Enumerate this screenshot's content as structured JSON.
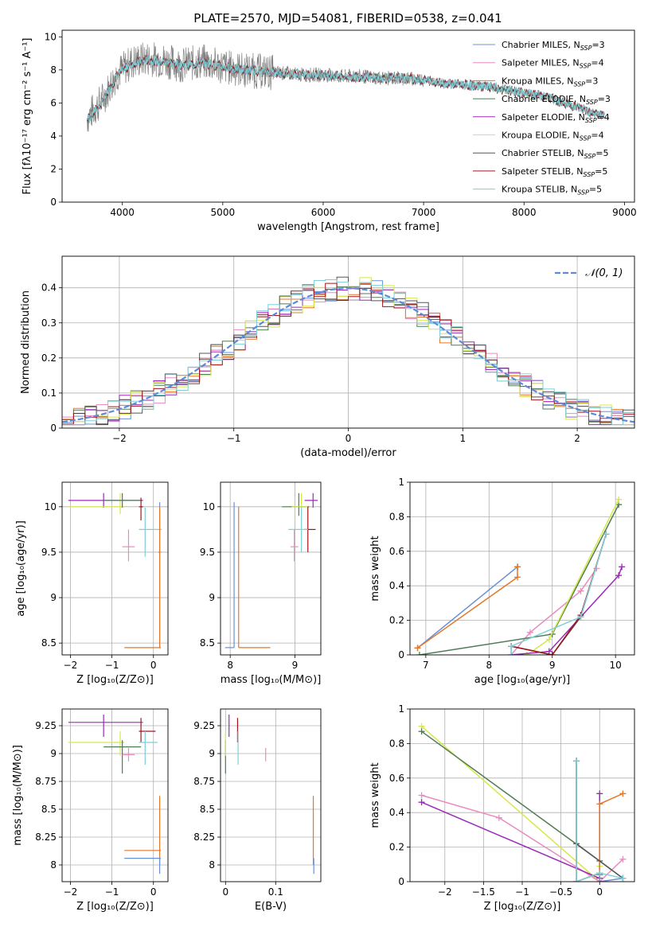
{
  "title": "PLATE=2570, MJD=54081, FIBERID=0538, z=0.041",
  "colors": {
    "Chabrier MILES": "#6a8fd8",
    "Salpeter MILES": "#e88bc0",
    "Kroupa MILES": "#e3772a",
    "Chabrier ELODIE": "#4e7d55",
    "Salpeter ELODIE": "#9b2ab8",
    "Kroupa ELODIE": "#d6e84a",
    "Chabrier STELIB": "#555555",
    "Salpeter STELIB": "#a3141e",
    "Kroupa STELIB": "#7fcfd6",
    "data": "#808080",
    "normal": "#5b8bd8"
  },
  "legend_spectrum": [
    {
      "name": "Chabrier MILES",
      "label": "Chabrier MILES, N",
      "sub": "SSP",
      "tail": "=3"
    },
    {
      "name": "Salpeter MILES",
      "label": "Salpeter MILES, N",
      "sub": "SSP",
      "tail": "=4"
    },
    {
      "name": "Kroupa MILES",
      "label": "Kroupa MILES, N",
      "sub": "SSP",
      "tail": "=3"
    },
    {
      "name": "Chabrier ELODIE",
      "label": "Chabrier ELODIE, N",
      "sub": "SSP",
      "tail": "=3"
    },
    {
      "name": "Salpeter ELODIE",
      "label": "Salpeter ELODIE, N",
      "sub": "SSP",
      "tail": "=4"
    },
    {
      "name": "Kroupa ELODIE",
      "label": "Kroupa ELODIE, N",
      "sub": "SSP",
      "tail": "=4"
    },
    {
      "name": "Chabrier STELIB",
      "label": "Chabrier STELIB, N",
      "sub": "SSP",
      "tail": "=5"
    },
    {
      "name": "Salpeter STELIB",
      "label": "Salpeter STELIB, N",
      "sub": "SSP",
      "tail": "=5"
    },
    {
      "name": "Kroupa STELIB",
      "label": "Kroupa STELIB, N",
      "sub": "SSP",
      "tail": "=5"
    }
  ],
  "chart_data": [
    {
      "type": "line",
      "id": "spectrum",
      "xlabel": "wavelength [Angstrom, rest frame]",
      "ylabel": "Flux [fλ10⁻¹⁷ erg cm⁻² s⁻¹ A⁻¹]",
      "xlim": [
        3400,
        9100
      ],
      "ylim": [
        0,
        10.4
      ],
      "xticks": [
        4000,
        5000,
        6000,
        7000,
        8000,
        9000
      ],
      "yticks": [
        0,
        2,
        4,
        6,
        8,
        10
      ],
      "grid": false,
      "legend": "upper right",
      "series": [
        {
          "name": "data",
          "x": [
            3650,
            3800,
            3950,
            4100,
            4250,
            4400,
            4600,
            4800,
            5000,
            5200,
            5400,
            5600,
            5800,
            6000,
            6200,
            6400,
            6600,
            6800,
            7000,
            7200,
            7400,
            7600,
            7800,
            8000,
            8200,
            8400,
            8600,
            8800
          ],
          "y": [
            5.1,
            6.2,
            7.8,
            8.5,
            8.7,
            8.6,
            8.3,
            8.5,
            8.2,
            8.0,
            7.9,
            7.8,
            7.7,
            7.7,
            7.6,
            7.6,
            7.5,
            7.5,
            7.4,
            7.2,
            7.1,
            7.0,
            6.8,
            6.6,
            6.4,
            6.0,
            5.6,
            5.2
          ]
        },
        {
          "name": "model",
          "x": [
            3650,
            3800,
            3950,
            4100,
            4250,
            4400,
            4600,
            4800,
            5000,
            5200,
            5400,
            5600,
            5800,
            6000,
            6200,
            6400,
            6600,
            6800,
            7000,
            7200,
            7400,
            7600,
            7800,
            8000,
            8200,
            8400,
            8600,
            8800
          ],
          "y": [
            5.0,
            6.0,
            7.7,
            8.4,
            8.6,
            8.5,
            8.3,
            8.4,
            8.2,
            8.0,
            7.9,
            7.8,
            7.7,
            7.7,
            7.6,
            7.6,
            7.5,
            7.5,
            7.4,
            7.2,
            7.1,
            7.0,
            6.8,
            6.6,
            6.4,
            6.0,
            5.6,
            5.2
          ]
        }
      ]
    },
    {
      "type": "histogram",
      "id": "residuals",
      "xlabel": "(data-model)/error",
      "ylabel": "Normed distribution",
      "xlim": [
        -2.5,
        2.5
      ],
      "ylim": [
        0,
        0.49
      ],
      "xticks": [
        -2,
        -1,
        0,
        1,
        2
      ],
      "yticks": [
        0.0,
        0.1,
        0.2,
        0.3,
        0.4
      ],
      "grid": true,
      "legend": "upper right",
      "legend_label": "𝒩(0, 1)",
      "bin_edges_range": [
        -2.5,
        2.5
      ],
      "bin_width": 0.1,
      "reference": {
        "name": "normal",
        "mean": 0,
        "sigma": 1
      }
    },
    {
      "type": "errorbar",
      "id": "age_vs_Z",
      "xlabel": "Z [log₁₀(Z/Z⊙)]",
      "ylabel": "age  [log₁₀(age/yr)]",
      "xlim": [
        -2.2,
        0.35
      ],
      "ylim": [
        8.37,
        10.27
      ],
      "xticks": [
        -2,
        -1,
        0
      ],
      "yticks": [
        8.5,
        9.0,
        9.5,
        10.0
      ],
      "grid": true,
      "points": [
        {
          "name": "Salpeter ELODIE",
          "x": -1.2,
          "y": 10.07,
          "xlo": -2.05,
          "xhi": -0.25,
          "ylo": 9.99,
          "yhi": 10.15
        },
        {
          "name": "Kroupa ELODIE",
          "x": -0.8,
          "y": 10.0,
          "xlo": -2.05,
          "xhi": -0.7,
          "ylo": 9.92,
          "yhi": 10.15
        },
        {
          "name": "Chabrier ELODIE",
          "x": -0.75,
          "y": 10.07,
          "xlo": -1.2,
          "xhi": -0.3,
          "ylo": 9.99,
          "yhi": 10.15
        },
        {
          "name": "Salpeter STELIB",
          "x": -0.3,
          "y": 10.0,
          "xlo": -0.35,
          "xhi": -0.25,
          "ylo": 9.85,
          "yhi": 10.1
        },
        {
          "name": "Kroupa STELIB",
          "x": -0.2,
          "y": 9.75,
          "xlo": -0.35,
          "xhi": 0.2,
          "ylo": 9.45,
          "yhi": 9.99
        },
        {
          "name": "Salpeter MILES",
          "x": -0.6,
          "y": 9.56,
          "xlo": -0.75,
          "xhi": -0.45,
          "ylo": 9.4,
          "yhi": 9.75
        },
        {
          "name": "Chabrier MILES",
          "x": 0.15,
          "y": 9.5,
          "xlo": 0.12,
          "xhi": 0.18,
          "ylo": 8.45,
          "yhi": 10.05
        },
        {
          "name": "Kroupa MILES",
          "x": 0.15,
          "y": 8.45,
          "xlo": -0.7,
          "xhi": 0.18,
          "ylo": 8.45,
          "yhi": 10.0
        }
      ]
    },
    {
      "type": "errorbar",
      "id": "age_vs_mass",
      "xlabel": "mass [log₁₀(M/M⊙)]",
      "ylabel": "",
      "xlim": [
        7.85,
        9.4
      ],
      "ylim": [
        8.37,
        10.27
      ],
      "xticks": [
        8,
        9
      ],
      "yticks": [
        8.5,
        9.0,
        9.5,
        10.0
      ],
      "grid": true,
      "points": [
        {
          "name": "Chabrier MILES",
          "x": 8.06,
          "y": 8.45,
          "xlo": 7.92,
          "xhi": 8.06,
          "ylo": 8.45,
          "yhi": 10.05
        },
        {
          "name": "Kroupa MILES",
          "x": 8.13,
          "y": 8.45,
          "xlo": 8.13,
          "xhi": 8.62,
          "ylo": 8.45,
          "yhi": 10.0
        },
        {
          "name": "Chabrier ELODIE",
          "x": 9.06,
          "y": 10.0,
          "xlo": 8.8,
          "xhi": 9.22,
          "ylo": 9.9,
          "yhi": 10.15
        },
        {
          "name": "Kroupa ELODIE",
          "x": 9.1,
          "y": 10.0,
          "xlo": 8.95,
          "xhi": 9.2,
          "ylo": 9.9,
          "yhi": 10.15
        },
        {
          "name": "Salpeter ELODIE",
          "x": 9.28,
          "y": 10.07,
          "xlo": 9.15,
          "xhi": 9.35,
          "ylo": 9.99,
          "yhi": 10.15
        },
        {
          "name": "Salpeter STELIB",
          "x": 9.2,
          "y": 9.75,
          "xlo": 9.15,
          "xhi": 9.32,
          "ylo": 9.5,
          "yhi": 10.0
        },
        {
          "name": "Kroupa STELIB",
          "x": 9.1,
          "y": 9.75,
          "xlo": 8.9,
          "xhi": 9.2,
          "ylo": 9.5,
          "yhi": 10.0
        },
        {
          "name": "Salpeter MILES",
          "x": 8.99,
          "y": 9.56,
          "xlo": 8.93,
          "xhi": 9.05,
          "ylo": 9.4,
          "yhi": 9.75
        }
      ]
    },
    {
      "type": "line",
      "id": "massweight_vs_age",
      "xlabel": "age  [log₁₀(age/yr)]",
      "ylabel": "mass weight",
      "xlim": [
        6.75,
        10.3
      ],
      "ylim": [
        0,
        1.0
      ],
      "xticks": [
        7,
        8,
        9,
        10
      ],
      "yticks": [
        0.0,
        0.2,
        0.4,
        0.6,
        0.8,
        1.0
      ],
      "grid": true,
      "series": [
        {
          "name": "Chabrier MILES",
          "x": [
            6.87,
            8.45,
            8.45
          ],
          "y": [
            0.04,
            0.51,
            0.51
          ]
        },
        {
          "name": "Kroupa MILES",
          "x": [
            6.87,
            8.45,
            8.45
          ],
          "y": [
            0.04,
            0.45,
            0.51
          ]
        },
        {
          "name": "Salpeter MILES",
          "x": [
            8.35,
            8.65,
            9.45,
            9.7
          ],
          "y": [
            0.0,
            0.13,
            0.37,
            0.5
          ]
        },
        {
          "name": "Chabrier ELODIE",
          "x": [
            6.9,
            9.0,
            10.05
          ],
          "y": [
            0.0,
            0.12,
            0.87
          ]
        },
        {
          "name": "Kroupa ELODIE",
          "x": [
            8.6,
            8.95,
            10.05
          ],
          "y": [
            0.0,
            0.09,
            0.9
          ]
        },
        {
          "name": "Salpeter ELODIE",
          "x": [
            8.35,
            8.95,
            10.05,
            10.1
          ],
          "y": [
            0.0,
            0.02,
            0.46,
            0.51
          ]
        },
        {
          "name": "Chabrier STELIB",
          "x": [
            8.35,
            9.0,
            9.45,
            9.85
          ],
          "y": [
            0.05,
            0.0,
            0.22,
            0.7
          ]
        },
        {
          "name": "Salpeter STELIB",
          "x": [
            8.35,
            9.0,
            9.45,
            9.85
          ],
          "y": [
            0.05,
            0.0,
            0.23,
            0.7
          ]
        },
        {
          "name": "Kroupa STELIB",
          "x": [
            8.35,
            8.35,
            9.45,
            9.85
          ],
          "y": [
            0.0,
            0.05,
            0.22,
            0.7
          ]
        }
      ]
    },
    {
      "type": "errorbar",
      "id": "mass_vs_Z",
      "xlabel": "Z [log₁₀(Z/Z⊙)]",
      "ylabel": "mass [log₁₀(M/M⊙)]",
      "xlim": [
        -2.2,
        0.35
      ],
      "ylim": [
        7.85,
        9.4
      ],
      "xticks": [
        -2,
        -1,
        0
      ],
      "yticks": [
        8.0,
        8.25,
        8.5,
        8.75,
        9.0,
        9.25
      ],
      "grid": true,
      "points": [
        {
          "name": "Salpeter ELODIE",
          "x": -1.2,
          "y": 9.28,
          "xlo": -2.05,
          "xhi": -0.25,
          "ylo": 9.15,
          "yhi": 9.35
        },
        {
          "name": "Kroupa ELODIE",
          "x": -0.8,
          "y": 9.1,
          "xlo": -2.05,
          "xhi": -0.7,
          "ylo": 8.98,
          "yhi": 9.2
        },
        {
          "name": "Chabrier ELODIE",
          "x": -0.75,
          "y": 9.06,
          "xlo": -1.2,
          "xhi": -0.3,
          "ylo": 8.82,
          "yhi": 9.12
        },
        {
          "name": "Salpeter STELIB",
          "x": -0.3,
          "y": 9.2,
          "xlo": -0.35,
          "xhi": 0.05,
          "ylo": 9.1,
          "yhi": 9.32
        },
        {
          "name": "Kroupa STELIB",
          "x": -0.2,
          "y": 9.1,
          "xlo": -0.35,
          "xhi": 0.1,
          "ylo": 8.9,
          "yhi": 9.2
        },
        {
          "name": "Salpeter MILES",
          "x": -0.6,
          "y": 8.99,
          "xlo": -0.75,
          "xhi": -0.45,
          "ylo": 8.93,
          "yhi": 9.05
        },
        {
          "name": "Kroupa MILES",
          "x": 0.15,
          "y": 8.13,
          "xlo": -0.7,
          "xhi": 0.18,
          "ylo": 8.0,
          "yhi": 8.62
        },
        {
          "name": "Chabrier MILES",
          "x": 0.15,
          "y": 8.06,
          "xlo": -0.7,
          "xhi": 0.18,
          "ylo": 7.92,
          "yhi": 8.06
        }
      ]
    },
    {
      "type": "errorbar",
      "id": "mass_vs_EBV",
      "xlabel": "E(B-V)",
      "ylabel": "",
      "xlim": [
        -0.01,
        0.19
      ],
      "ylim": [
        7.85,
        9.4
      ],
      "xticks": [
        0.0,
        0.1
      ],
      "yticks": [
        8.0,
        8.25,
        8.5,
        8.75,
        9.0,
        9.25
      ],
      "grid": true,
      "points": [
        {
          "name": "Chabrier ELODIE",
          "x": 0.0,
          "y": 9.06,
          "xlo": 0.0,
          "xhi": 0.0,
          "ylo": 8.82,
          "yhi": 9.12
        },
        {
          "name": "Kroupa ELODIE",
          "x": 0.0,
          "y": 9.1,
          "xlo": 0.0,
          "xhi": 0.0,
          "ylo": 8.98,
          "yhi": 9.2
        },
        {
          "name": "Salpeter ELODIE",
          "x": 0.007,
          "y": 9.28,
          "xlo": 0.007,
          "xhi": 0.007,
          "ylo": 9.15,
          "yhi": 9.35
        },
        {
          "name": "Salpeter STELIB",
          "x": 0.024,
          "y": 9.2,
          "xlo": 0.024,
          "xhi": 0.024,
          "ylo": 9.1,
          "yhi": 9.32
        },
        {
          "name": "Kroupa STELIB",
          "x": 0.025,
          "y": 9.1,
          "xlo": 0.025,
          "xhi": 0.025,
          "ylo": 8.9,
          "yhi": 9.2
        },
        {
          "name": "Salpeter MILES",
          "x": 0.08,
          "y": 8.99,
          "xlo": 0.08,
          "xhi": 0.08,
          "ylo": 8.93,
          "yhi": 9.05
        },
        {
          "name": "Kroupa MILES",
          "x": 0.175,
          "y": 8.13,
          "xlo": 0.175,
          "xhi": 0.175,
          "ylo": 8.0,
          "yhi": 8.62
        },
        {
          "name": "Chabrier MILES",
          "x": 0.176,
          "y": 8.06,
          "xlo": 0.176,
          "xhi": 0.176,
          "ylo": 7.92,
          "yhi": 8.06
        }
      ]
    },
    {
      "type": "line",
      "id": "massweight_vs_Z",
      "xlabel": "Z [log₁₀(Z/Z⊙)]",
      "ylabel": "mass weight",
      "xlim": [
        -2.45,
        0.45
      ],
      "ylim": [
        0,
        1.0
      ],
      "xticks": [
        -2.0,
        -1.5,
        -1.0,
        -0.5,
        0.0
      ],
      "yticks": [
        0.0,
        0.2,
        0.4,
        0.6,
        0.8,
        1.0
      ],
      "grid": true,
      "series": [
        {
          "name": "Kroupa ELODIE",
          "x": [
            -2.3,
            0.0,
            0.0
          ],
          "y": [
            0.9,
            0.0,
            0.09
          ]
        },
        {
          "name": "Chabrier ELODIE",
          "x": [
            -2.3,
            0.0,
            0.3
          ],
          "y": [
            0.87,
            0.12,
            0.02
          ]
        },
        {
          "name": "Salpeter MILES",
          "x": [
            -2.3,
            -1.3,
            0.0,
            0.3
          ],
          "y": [
            0.5,
            0.37,
            0.0,
            0.13
          ]
        },
        {
          "name": "Salpeter ELODIE",
          "x": [
            -2.3,
            0.0,
            0.0
          ],
          "y": [
            0.46,
            0.02,
            0.51
          ]
        },
        {
          "name": "Kroupa MILES",
          "x": [
            0.0,
            0.0,
            0.3
          ],
          "y": [
            0.04,
            0.45,
            0.51
          ]
        },
        {
          "name": "Chabrier MILES",
          "x": [
            0.0,
            0.0,
            0.3
          ],
          "y": [
            0.04,
            0.0,
            0.02
          ]
        },
        {
          "name": "Salpeter STELIB",
          "x": [
            -0.3,
            -0.3,
            0.0
          ],
          "y": [
            0.7,
            0.0,
            0.05
          ]
        },
        {
          "name": "Chabrier STELIB",
          "x": [
            -0.3,
            -0.3,
            0.3
          ],
          "y": [
            0.7,
            0.22,
            0.02
          ]
        },
        {
          "name": "Kroupa STELIB",
          "x": [
            -0.3,
            -0.3,
            0.0,
            0.3
          ],
          "y": [
            0.7,
            0.0,
            0.05,
            0.02
          ]
        }
      ]
    }
  ]
}
